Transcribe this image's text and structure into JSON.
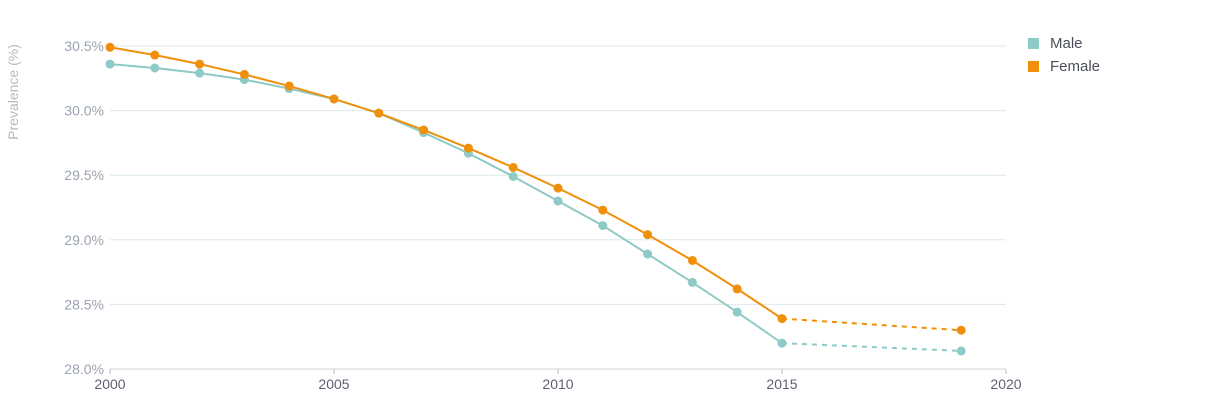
{
  "chart_data": {
    "type": "line",
    "ylabel": "Prevalence (%)",
    "xlim": [
      2000,
      2020
    ],
    "ylim": [
      28.0,
      30.6
    ],
    "x_ticks": [
      "2000",
      "2005",
      "2010",
      "2015",
      "2020"
    ],
    "y_ticks": [
      "28.0%",
      "28.5%",
      "29.0%",
      "29.5%",
      "30.0%",
      "30.5%"
    ],
    "grid": "horizontal",
    "legend_position": "top-right",
    "series": [
      {
        "name": "Male",
        "color": "#8ecac6",
        "points": [
          {
            "x": 2000,
            "y": 30.36
          },
          {
            "x": 2001,
            "y": 30.33
          },
          {
            "x": 2002,
            "y": 30.29
          },
          {
            "x": 2003,
            "y": 30.24
          },
          {
            "x": 2004,
            "y": 30.17
          },
          {
            "x": 2005,
            "y": 30.09
          },
          {
            "x": 2006,
            "y": 29.98
          },
          {
            "x": 2007,
            "y": 29.83
          },
          {
            "x": 2008,
            "y": 29.67
          },
          {
            "x": 2009,
            "y": 29.49
          },
          {
            "x": 2010,
            "y": 29.3
          },
          {
            "x": 2011,
            "y": 29.11
          },
          {
            "x": 2012,
            "y": 28.89
          },
          {
            "x": 2013,
            "y": 28.67
          },
          {
            "x": 2014,
            "y": 28.44
          },
          {
            "x": 2015,
            "y": 28.2
          }
        ],
        "projected_points": [
          {
            "x": 2015,
            "y": 28.2
          },
          {
            "x": 2019,
            "y": 28.14
          }
        ]
      },
      {
        "name": "Female",
        "color": "#f0900a",
        "points": [
          {
            "x": 2000,
            "y": 30.49
          },
          {
            "x": 2001,
            "y": 30.43
          },
          {
            "x": 2002,
            "y": 30.36
          },
          {
            "x": 2003,
            "y": 30.28
          },
          {
            "x": 2004,
            "y": 30.19
          },
          {
            "x": 2005,
            "y": 30.09
          },
          {
            "x": 2006,
            "y": 29.98
          },
          {
            "x": 2007,
            "y": 29.85
          },
          {
            "x": 2008,
            "y": 29.71
          },
          {
            "x": 2009,
            "y": 29.56
          },
          {
            "x": 2010,
            "y": 29.4
          },
          {
            "x": 2011,
            "y": 29.23
          },
          {
            "x": 2012,
            "y": 29.04
          },
          {
            "x": 2013,
            "y": 28.84
          },
          {
            "x": 2014,
            "y": 28.62
          },
          {
            "x": 2015,
            "y": 28.39
          }
        ],
        "projected_points": [
          {
            "x": 2015,
            "y": 28.39
          },
          {
            "x": 2019,
            "y": 28.3
          }
        ]
      }
    ]
  }
}
